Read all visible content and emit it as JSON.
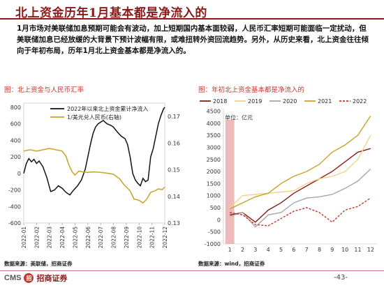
{
  "header": {
    "title": "北上资金历年1月基本都是净流入的"
  },
  "body_text": "1月市场对美联储加息预期可能会有波动，加上短期国内基本面较弱，人民币汇率短期可能面临一定扰动，但美联储加息已经放缓的大背景下预计波幅有限，或难扭转外资回流趋势。另外，从历史来看，北上资金往往倾向于年初布局，历年1月北上资金基本都是净流入的。",
  "left_panel": {
    "title": "图：北上资金与人民币汇率",
    "source": "数据来源：美联储，招商证券"
  },
  "right_panel": {
    "title": "图：年初北上资金基本都是净流入的",
    "source": "数据来源：wind，招商证券",
    "unit": "单位：亿元"
  },
  "footer": {
    "logo_text": "CMS",
    "seal": "招",
    "brand": "招商证券",
    "page": "-43-"
  },
  "colors": {
    "title": "#8b1a1a",
    "panel_title": "#c0392b"
  },
  "chart_data": [
    {
      "type": "line",
      "title": "",
      "xlabel": "",
      "ylabel": "",
      "x_ticks": [
        "2022-01",
        "2022-02",
        "2022-03",
        "2022-04",
        "2022-05",
        "2022-06",
        "2022-07",
        "2022-08",
        "2022-09",
        "2022-10",
        "2022-11",
        "2022-12"
      ],
      "y_left_ticks": [
        "-600",
        "-400",
        "-200",
        "0",
        "200",
        "400",
        "600",
        "800"
      ],
      "y_right_ticks": [
        "0.13",
        "0.14",
        "0.15",
        "0.16",
        "0.17"
      ],
      "ylim": [
        -600,
        850
      ],
      "y2lim": [
        0.13,
        0.175
      ],
      "legend": "top-center",
      "series": [
        {
          "name": "2022年以来北上资金累计净流入",
          "color": "#111111",
          "axis": "left",
          "x": [
            0,
            0.2,
            0.4,
            0.6,
            0.8,
            1.0,
            1.2,
            1.5,
            1.8,
            2.1,
            2.4,
            2.7,
            3.0,
            3.3,
            3.6,
            3.9,
            4.2,
            4.5,
            4.8,
            5.0,
            5.2,
            5.4,
            5.6,
            5.8,
            6.0,
            6.2,
            6.5,
            6.8,
            7.0,
            7.3,
            7.6,
            7.9,
            8.1,
            8.3,
            8.5,
            8.7,
            8.9,
            9.1,
            9.3,
            9.5,
            9.7,
            9.9,
            10.1,
            10.3,
            10.5,
            10.7,
            10.9,
            11.0
          ],
          "y": [
            0,
            120,
            180,
            140,
            170,
            120,
            150,
            80,
            -50,
            -220,
            -200,
            -150,
            -180,
            -230,
            -260,
            -200,
            -150,
            -80,
            50,
            200,
            350,
            480,
            560,
            600,
            620,
            640,
            600,
            580,
            560,
            500,
            450,
            420,
            350,
            200,
            0,
            -80,
            -120,
            -150,
            -60,
            -100,
            -80,
            200,
            300,
            450,
            600,
            700,
            780,
            800
          ]
        },
        {
          "name": "1/美元兑人民币(右轴)",
          "color": "#c9a227",
          "axis": "right",
          "x": [
            0,
            0.5,
            1.0,
            1.5,
            2.0,
            2.5,
            3.0,
            3.3,
            3.5,
            3.8,
            4.0,
            4.3,
            4.6,
            5.0,
            5.5,
            6.0,
            6.5,
            7.0,
            7.5,
            7.8,
            8.0,
            8.3,
            8.6,
            9.0,
            9.3,
            9.6,
            9.9,
            10.2,
            10.5,
            10.8,
            11.0
          ],
          "y": [
            0.157,
            0.1575,
            0.157,
            0.1575,
            0.158,
            0.1575,
            0.157,
            0.155,
            0.152,
            0.149,
            0.148,
            0.1495,
            0.1492,
            0.149,
            0.1492,
            0.149,
            0.1487,
            0.1483,
            0.1465,
            0.1445,
            0.1435,
            0.142,
            0.139,
            0.1385,
            0.1375,
            0.139,
            0.1415,
            0.142,
            0.1428,
            0.1425,
            0.1435
          ]
        }
      ]
    },
    {
      "type": "line",
      "title": "",
      "xlabel": "",
      "ylabel": "",
      "x": [
        1,
        2,
        3,
        4,
        5,
        6,
        7,
        8,
        9,
        10,
        11,
        12
      ],
      "x_ticks": [
        "1",
        "2",
        "3",
        "4",
        "5",
        "6",
        "7",
        "8",
        "9",
        "10",
        "11",
        "12"
      ],
      "y_ticks": [
        "-1000",
        "-500",
        "0",
        "500",
        "1000",
        "1500",
        "2000",
        "2500",
        "3000",
        "3500",
        "4000",
        "4500"
      ],
      "ylim": [
        -1000,
        4600
      ],
      "legend": "top",
      "highlight_x": 1,
      "series": [
        {
          "name": "2018",
          "color": "#8b1a1a",
          "dash": false,
          "values": [
            200,
            300,
            -100,
            400,
            700,
            1100,
            1400,
            1700,
            2000,
            2400,
            2800,
            2950
          ]
        },
        {
          "name": "2019",
          "color": "#f2d38a",
          "dash": false,
          "values": [
            500,
            1000,
            1050,
            1100,
            1150,
            1200,
            1500,
            1700,
            1800,
            2000,
            2500,
            3500
          ]
        },
        {
          "name": "2020",
          "color": "#a6a6a6",
          "dash": false,
          "values": [
            150,
            300,
            -300,
            200,
            300,
            700,
            900,
            950,
            1050,
            1300,
            1600,
            2100
          ]
        },
        {
          "name": "2021",
          "color": "#c9a227",
          "dash": false,
          "values": [
            450,
            700,
            950,
            1100,
            1500,
            1800,
            2000,
            2300,
            2800,
            3100,
            3500,
            4300
          ]
        },
        {
          "name": "2022",
          "color": "#c0392b",
          "dash": true,
          "values": [
            300,
            200,
            -200,
            -250,
            50,
            350,
            500,
            300,
            -100,
            400,
            550,
            900
          ]
        }
      ]
    }
  ]
}
